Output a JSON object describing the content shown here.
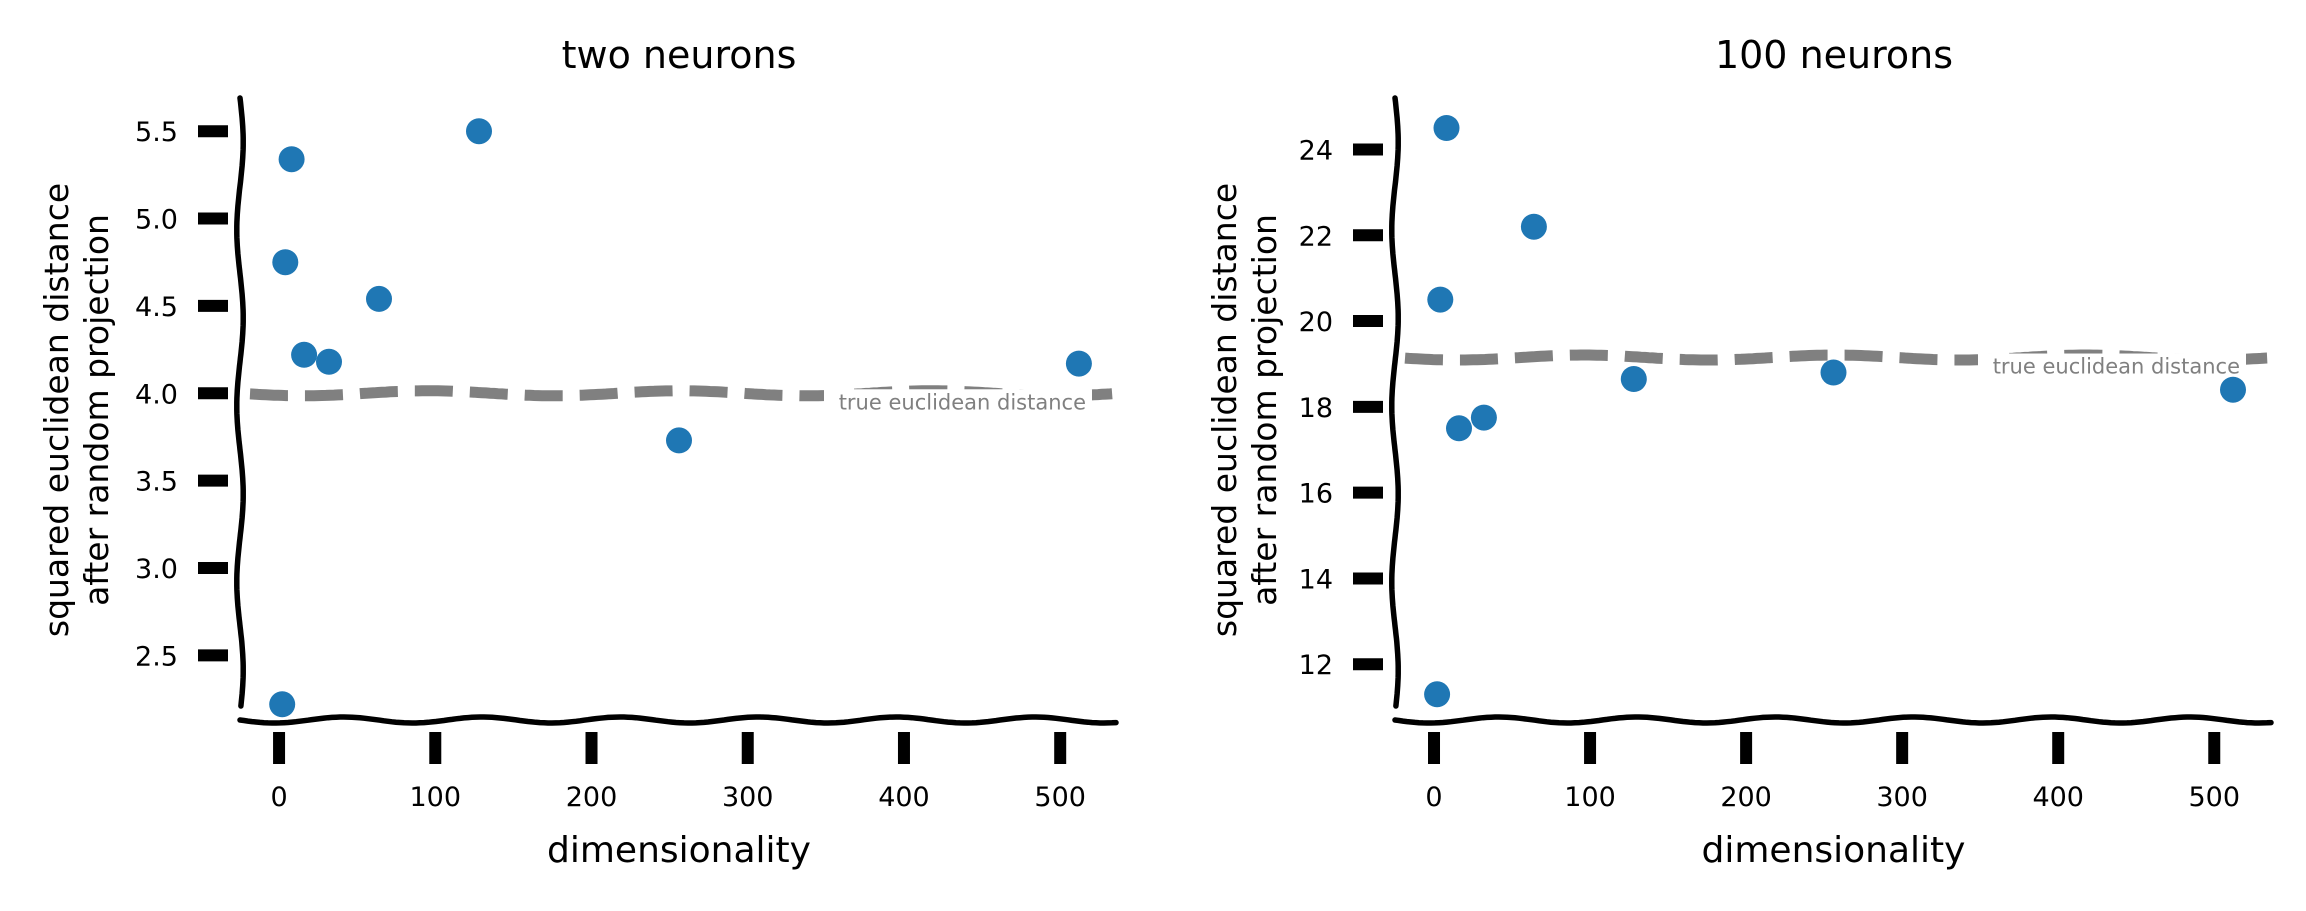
{
  "chart_data": [
    {
      "type": "scatter",
      "title": "two neurons",
      "xlabel": "dimensionality",
      "ylabel": [
        "squared euclidean distance",
        "after random projection"
      ],
      "xlim": [
        -25,
        537
      ],
      "ylim": [
        2.13,
        5.69
      ],
      "xticks": [
        0,
        100,
        200,
        300,
        400,
        500
      ],
      "yticks": [
        2.5,
        3.0,
        3.5,
        4.0,
        4.5,
        5.0,
        5.5
      ],
      "ytick_labels": [
        "2.5",
        "3.0",
        "3.5",
        "4.0",
        "4.5",
        "5.0",
        "5.5"
      ],
      "series": [
        {
          "x": [
            2,
            4,
            8,
            16,
            32,
            64,
            128,
            256,
            512
          ],
          "y": [
            2.22,
            4.75,
            5.34,
            4.22,
            4.18,
            4.54,
            5.5,
            3.73,
            4.17
          ]
        }
      ],
      "reference_line": {
        "y": 4.0,
        "label": "true euclidean distance"
      },
      "grid": false,
      "colors": {
        "points": "#1f77b4",
        "reference": "#808080",
        "axes": "#000000"
      }
    },
    {
      "type": "scatter",
      "title": "100 neurons",
      "xlabel": "dimensionality",
      "ylabel": [
        "squared euclidean distance",
        "after random projection"
      ],
      "xlim": [
        -25,
        537
      ],
      "ylim": [
        10.7,
        25.2
      ],
      "xticks": [
        0,
        100,
        200,
        300,
        400,
        500
      ],
      "yticks": [
        12,
        14,
        16,
        18,
        20,
        22,
        24
      ],
      "ytick_labels": [
        "12",
        "14",
        "16",
        "18",
        "20",
        "22",
        "24"
      ],
      "series": [
        {
          "x": [
            2,
            4,
            8,
            16,
            32,
            64,
            128,
            256,
            512
          ],
          "y": [
            11.3,
            20.5,
            24.5,
            17.5,
            17.75,
            22.2,
            18.65,
            18.8,
            18.4
          ]
        }
      ],
      "reference_line": {
        "y": 19.15,
        "label": "true euclidean distance"
      },
      "grid": false,
      "colors": {
        "points": "#1f77b4",
        "reference": "#808080",
        "axes": "#000000"
      }
    }
  ]
}
